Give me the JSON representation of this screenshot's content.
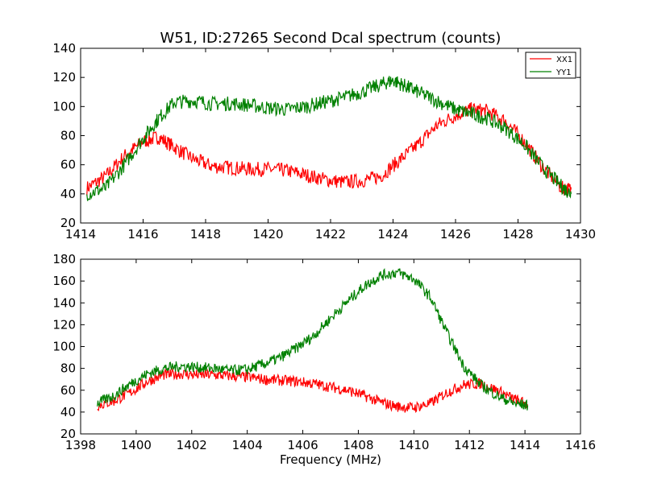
{
  "title": "W51, ID:27265 Second Dcal spectrum (counts)",
  "colors": {
    "XX1": "#ff0000",
    "YY1": "#008000"
  },
  "chart_data": [
    {
      "type": "line",
      "title": "W51, ID:27265 Second Dcal spectrum (counts)",
      "xlabel": "",
      "ylabel": "",
      "xlim": [
        1414,
        1430
      ],
      "ylim": [
        20,
        140
      ],
      "x_ticks": [
        1414,
        1416,
        1418,
        1420,
        1422,
        1424,
        1426,
        1428,
        1430
      ],
      "y_ticks": [
        20,
        40,
        60,
        80,
        100,
        120,
        140
      ],
      "legend": {
        "placement": "top-right",
        "entries": [
          "XX1",
          "YY1"
        ]
      },
      "grid": false,
      "series": [
        {
          "name": "XX1",
          "x": [
            1414.2,
            1414.8,
            1415.4,
            1416.0,
            1416.5,
            1417.0,
            1417.6,
            1418.2,
            1418.8,
            1419.4,
            1420.0,
            1420.6,
            1421.2,
            1421.8,
            1422.4,
            1423.0,
            1423.6,
            1424.2,
            1424.8,
            1425.4,
            1426.0,
            1426.5,
            1427.0,
            1427.6,
            1428.2,
            1428.8,
            1429.4,
            1429.7
          ],
          "y": [
            44,
            52,
            66,
            76,
            79,
            72,
            64,
            59,
            58,
            57,
            57,
            56,
            53,
            50,
            48,
            49,
            52,
            63,
            74,
            87,
            94,
            98,
            97,
            90,
            76,
            58,
            44,
            43
          ]
        },
        {
          "name": "YY1",
          "x": [
            1414.2,
            1414.8,
            1415.4,
            1416.0,
            1416.5,
            1417.0,
            1417.6,
            1418.2,
            1418.8,
            1419.4,
            1420.0,
            1420.6,
            1421.2,
            1421.8,
            1422.4,
            1423.0,
            1423.6,
            1424.0,
            1424.4,
            1424.8,
            1425.4,
            1426.0,
            1426.5,
            1427.0,
            1427.6,
            1428.2,
            1428.8,
            1429.4,
            1429.7
          ],
          "y": [
            40,
            44,
            60,
            78,
            92,
            103,
            104,
            102,
            102,
            101,
            99,
            98,
            100,
            103,
            106,
            110,
            115,
            118,
            114,
            110,
            104,
            98,
            95,
            92,
            85,
            74,
            58,
            45,
            40
          ]
        }
      ]
    },
    {
      "type": "line",
      "title": "",
      "xlabel": "Frequency (MHz)",
      "ylabel": "",
      "xlim": [
        1398,
        1416
      ],
      "ylim": [
        20,
        180
      ],
      "x_ticks": [
        1398,
        1400,
        1402,
        1404,
        1406,
        1408,
        1410,
        1412,
        1414,
        1416
      ],
      "y_ticks": [
        20,
        40,
        60,
        80,
        100,
        120,
        140,
        160,
        180
      ],
      "grid": false,
      "series": [
        {
          "name": "XX1",
          "x": [
            1398.6,
            1399.2,
            1399.8,
            1400.4,
            1401.0,
            1401.6,
            1402.2,
            1402.8,
            1403.4,
            1404.0,
            1404.6,
            1405.2,
            1405.8,
            1406.4,
            1407.0,
            1407.6,
            1408.2,
            1408.8,
            1409.4,
            1410.0,
            1410.6,
            1411.2,
            1411.8,
            1412.4,
            1413.0,
            1413.6,
            1414.1
          ],
          "y": [
            46,
            50,
            58,
            68,
            74,
            75,
            74,
            74,
            73,
            72,
            70,
            69,
            68,
            66,
            63,
            60,
            55,
            49,
            45,
            44,
            48,
            58,
            65,
            66,
            60,
            52,
            47
          ]
        },
        {
          "name": "YY1",
          "x": [
            1398.6,
            1399.2,
            1399.8,
            1400.4,
            1401.0,
            1401.6,
            1402.2,
            1402.8,
            1403.4,
            1404.0,
            1404.6,
            1405.2,
            1405.8,
            1406.4,
            1407.0,
            1407.6,
            1408.2,
            1408.8,
            1409.4,
            1410.0,
            1410.6,
            1411.2,
            1411.8,
            1412.4,
            1413.0,
            1413.6,
            1414.1
          ],
          "y": [
            48,
            55,
            66,
            75,
            80,
            82,
            81,
            80,
            78,
            79,
            84,
            90,
            99,
            110,
            126,
            141,
            155,
            165,
            168,
            162,
            145,
            112,
            82,
            65,
            55,
            48,
            46
          ]
        }
      ]
    }
  ]
}
